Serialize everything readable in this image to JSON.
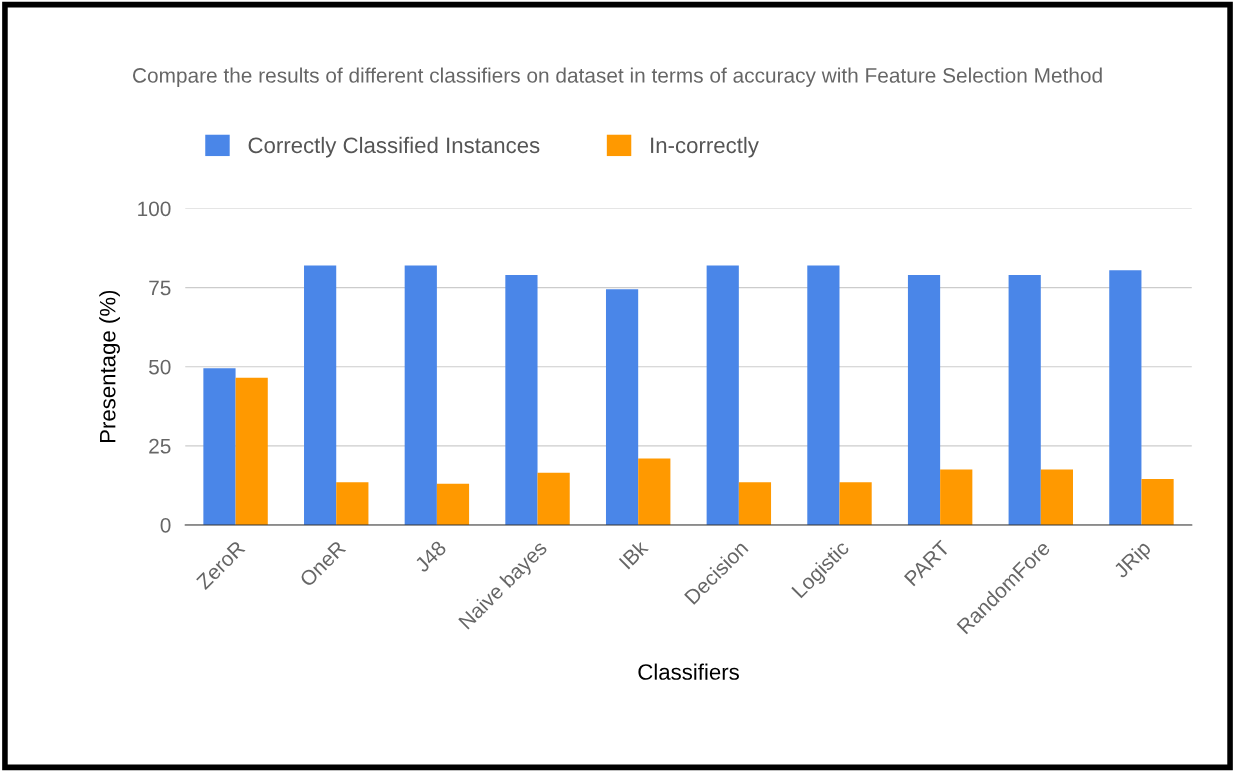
{
  "chart_data": {
    "type": "bar",
    "title": "Compare the results of different classifiers on dataset in terms of accuracy with Feature Selection Method",
    "xlabel": "Classifiers",
    "ylabel": "Presentage (%)",
    "categories": [
      "ZeroR",
      "OneR",
      "J48",
      "Naive bayes",
      "IBk",
      "Decision",
      "Logistic",
      "PART",
      "RandomFore",
      "JRip"
    ],
    "series": [
      {
        "name": "Correctly Classified Instances",
        "color": "#4a86e8",
        "values": [
          49.5,
          82,
          82,
          79,
          74.5,
          82,
          82,
          79,
          79,
          80.5
        ]
      },
      {
        "name": "In-correctly",
        "color": "#ff9900",
        "values": [
          46.5,
          13.5,
          13,
          16.5,
          21,
          13.5,
          13.5,
          17.5,
          17.5,
          14.5
        ]
      }
    ],
    "ylim": [
      0,
      100
    ],
    "yticks": [
      0,
      25,
      50,
      75,
      100
    ],
    "grid": "y",
    "legend": "top left"
  }
}
